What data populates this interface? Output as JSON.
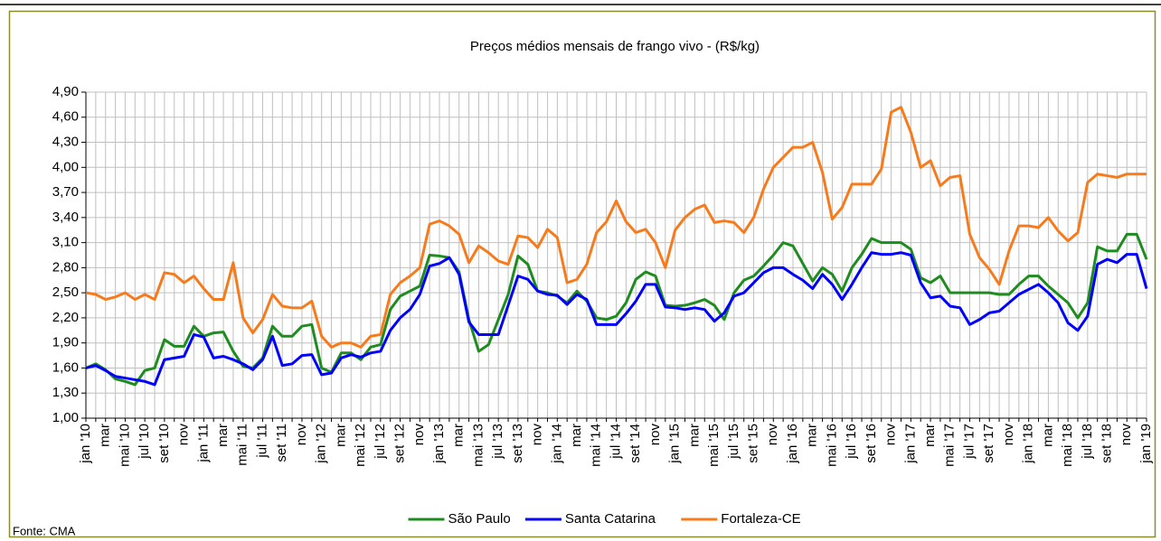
{
  "chart_data": {
    "type": "line",
    "title": "Preços médios mensais de frango vivo - (R$/kg)",
    "source": "Fonte: CMA",
    "categories": [
      "jan '10",
      null,
      "mar",
      null,
      "mai '10",
      null,
      "jul '10",
      null,
      "set '10",
      null,
      "nov",
      null,
      "jan '11",
      null,
      "mar",
      null,
      "mai '11",
      null,
      "jul '11",
      null,
      "set '11",
      null,
      "nov",
      null,
      "jan '12",
      null,
      "mar",
      null,
      "mai '12",
      null,
      "jul '12",
      null,
      "set '12",
      null,
      "nov",
      null,
      "jan '13",
      null,
      "mar",
      null,
      "mai '13",
      null,
      "jul '13",
      null,
      "set '13",
      null,
      "nov",
      null,
      "jan '14",
      null,
      "mar",
      null,
      "mai '14",
      null,
      "jul '14",
      null,
      "set '14",
      null,
      "nov",
      null,
      "jan '15",
      null,
      "mar",
      null,
      "mai '15",
      null,
      "jul '15",
      null,
      "set '15",
      null,
      "nov",
      null,
      "jan '16",
      null,
      "mar",
      null,
      "mai '16",
      null,
      "jul '16",
      null,
      "set '16",
      null,
      "nov",
      null,
      "jan '17",
      null,
      "mar",
      null,
      "mai '17",
      null,
      "jul '17",
      null,
      "set '17",
      null,
      "nov",
      null,
      "jan '18",
      null,
      "mar",
      null,
      "mai '18",
      null,
      "jul '18",
      null,
      "set '18",
      null,
      "nov",
      null,
      "jan '19"
    ],
    "series": [
      {
        "name": "São Paulo",
        "color": "#1e8c1e",
        "values": [
          1.6,
          1.65,
          1.58,
          1.47,
          1.44,
          1.4,
          1.57,
          1.6,
          1.94,
          1.86,
          1.86,
          2.1,
          1.98,
          2.02,
          2.03,
          1.8,
          1.62,
          1.6,
          1.72,
          2.1,
          1.98,
          1.98,
          2.1,
          2.12,
          1.6,
          1.55,
          1.78,
          1.78,
          1.7,
          1.85,
          1.88,
          2.3,
          2.46,
          2.52,
          2.58,
          2.95,
          2.94,
          2.92,
          2.75,
          2.18,
          1.8,
          1.88,
          2.18,
          2.48,
          2.94,
          2.84,
          2.52,
          2.5,
          2.46,
          2.38,
          2.52,
          2.4,
          2.2,
          2.18,
          2.22,
          2.38,
          2.66,
          2.75,
          2.7,
          2.35,
          2.34,
          2.35,
          2.38,
          2.42,
          2.35,
          2.18,
          2.5,
          2.65,
          2.7,
          2.82,
          2.95,
          3.1,
          3.06,
          2.85,
          2.64,
          2.8,
          2.72,
          2.52,
          2.8,
          2.96,
          3.15,
          3.1,
          3.1,
          3.1,
          3.02,
          2.68,
          2.62,
          2.7,
          2.5,
          2.5,
          2.5,
          2.5,
          2.5,
          2.48,
          2.48,
          2.6,
          2.7,
          2.7,
          2.58,
          2.48,
          2.38,
          2.2,
          2.38,
          3.05,
          3.0,
          3.0,
          3.2,
          3.2,
          2.9
        ]
      },
      {
        "name": "Santa Catarina",
        "color": "#0000ff",
        "values": [
          1.6,
          1.63,
          1.57,
          1.5,
          1.48,
          1.46,
          1.44,
          1.4,
          1.7,
          1.72,
          1.74,
          2.0,
          1.97,
          1.72,
          1.74,
          1.7,
          1.65,
          1.58,
          1.7,
          1.98,
          1.63,
          1.65,
          1.75,
          1.76,
          1.52,
          1.54,
          1.72,
          1.76,
          1.73,
          1.78,
          1.8,
          2.05,
          2.2,
          2.3,
          2.48,
          2.82,
          2.85,
          2.92,
          2.72,
          2.15,
          2.0,
          2.0,
          2.0,
          2.35,
          2.7,
          2.66,
          2.52,
          2.48,
          2.47,
          2.36,
          2.48,
          2.42,
          2.12,
          2.12,
          2.12,
          2.25,
          2.4,
          2.6,
          2.6,
          2.33,
          2.32,
          2.3,
          2.32,
          2.3,
          2.16,
          2.26,
          2.46,
          2.5,
          2.62,
          2.74,
          2.8,
          2.8,
          2.72,
          2.65,
          2.55,
          2.72,
          2.6,
          2.42,
          2.6,
          2.8,
          2.98,
          2.96,
          2.96,
          2.98,
          2.95,
          2.62,
          2.44,
          2.46,
          2.34,
          2.32,
          2.12,
          2.18,
          2.26,
          2.28,
          2.38,
          2.48,
          2.54,
          2.6,
          2.5,
          2.38,
          2.14,
          2.05,
          2.22,
          2.84,
          2.9,
          2.86,
          2.96,
          2.96,
          2.55
        ]
      },
      {
        "name": "Fortaleza-CE",
        "color": "#f77b1c",
        "values": [
          2.5,
          2.48,
          2.42,
          2.45,
          2.5,
          2.42,
          2.48,
          2.42,
          2.74,
          2.72,
          2.62,
          2.7,
          2.55,
          2.42,
          2.42,
          2.86,
          2.2,
          2.02,
          2.18,
          2.48,
          2.34,
          2.32,
          2.32,
          2.4,
          1.98,
          1.85,
          1.9,
          1.9,
          1.85,
          1.98,
          2.0,
          2.48,
          2.62,
          2.7,
          2.8,
          3.32,
          3.36,
          3.3,
          3.2,
          2.86,
          3.06,
          2.98,
          2.88,
          2.84,
          3.18,
          3.16,
          3.04,
          3.26,
          3.16,
          2.62,
          2.66,
          2.84,
          3.22,
          3.35,
          3.6,
          3.35,
          3.22,
          3.26,
          3.1,
          2.8,
          3.25,
          3.4,
          3.5,
          3.55,
          3.34,
          3.36,
          3.34,
          3.22,
          3.4,
          3.74,
          4.0,
          4.12,
          4.24,
          4.24,
          4.3,
          3.94,
          3.38,
          3.52,
          3.8,
          3.8,
          3.8,
          3.98,
          4.66,
          4.72,
          4.42,
          4.0,
          4.08,
          3.78,
          3.88,
          3.9,
          3.2,
          2.92,
          2.78,
          2.6,
          3.0,
          3.3,
          3.3,
          3.28,
          3.4,
          3.24,
          3.12,
          3.22,
          3.82,
          3.92,
          3.9,
          3.88,
          3.92,
          3.92,
          3.92
        ]
      }
    ],
    "ylim": [
      1.0,
      4.9
    ],
    "yticks": [
      {
        "value": 1.0,
        "label": "1,00"
      },
      {
        "value": 1.3,
        "label": "1,30"
      },
      {
        "value": 1.6,
        "label": "1,60"
      },
      {
        "value": 1.9,
        "label": "1,90"
      },
      {
        "value": 2.2,
        "label": "2,20"
      },
      {
        "value": 2.5,
        "label": "2,50"
      },
      {
        "value": 2.8,
        "label": "2,80"
      },
      {
        "value": 3.1,
        "label": "3,10"
      },
      {
        "value": 3.4,
        "label": "3,40"
      },
      {
        "value": 3.7,
        "label": "3,70"
      },
      {
        "value": 4.0,
        "label": "4,00"
      },
      {
        "value": 4.3,
        "label": "4,30"
      },
      {
        "value": 4.6,
        "label": "4,60"
      },
      {
        "value": 4.9,
        "label": "4,90"
      }
    ],
    "grid": true,
    "legend": "bottom"
  }
}
